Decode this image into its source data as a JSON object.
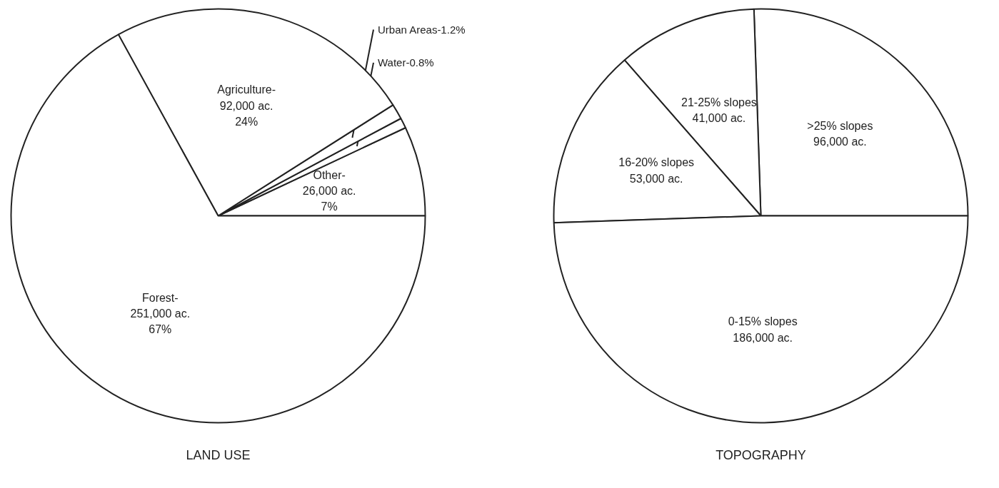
{
  "chart_data": [
    {
      "type": "pie",
      "title": "LAND USE",
      "categories": [
        "Other-",
        "Water-",
        "Urban Areas-",
        "Agriculture-",
        "Forest-"
      ],
      "values": [
        7,
        0.8,
        1.2,
        24,
        67
      ],
      "value_labels": [
        "26,000 ac.\n7%",
        "0.8%",
        "1.2%",
        "92,000 ac.\n24%",
        "251,000 ac.\n67%"
      ],
      "colors": [
        "#ffffff",
        "#ffffff",
        "#ffffff",
        "#ffffff",
        "#ffffff"
      ]
    },
    {
      "type": "pie",
      "title": "TOPOGRAPHY",
      "categories": [
        ">25% slopes",
        "21-25% slopes",
        "16-20% slopes",
        "0-15% slopes"
      ],
      "values": [
        96000,
        41000,
        53000,
        186000
      ],
      "value_labels": [
        "96,000 ac.",
        "41,000 ac.",
        "53,000 ac.",
        "186,000 ac."
      ],
      "colors": [
        "#ffffff",
        "#ffffff",
        "#ffffff",
        "#ffffff"
      ]
    }
  ]
}
